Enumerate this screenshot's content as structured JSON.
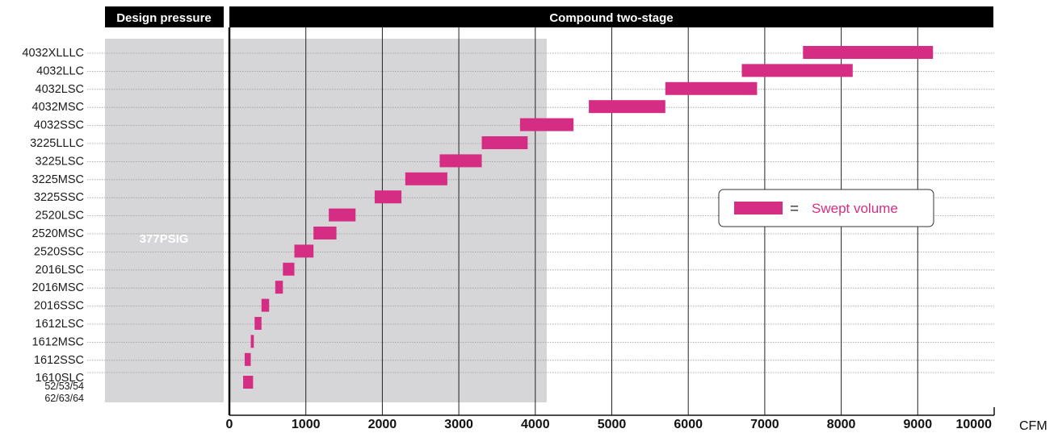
{
  "headers": {
    "design_pressure": "Design pressure",
    "compound": "Compound two-stage"
  },
  "region_label": "377PSIG",
  "legend": {
    "equals": "=",
    "label": "Swept volume"
  },
  "colors": {
    "bar": "#d62d84",
    "shade": "#d6d6d8",
    "header_bg": "#000000"
  },
  "chart_data": {
    "type": "bar",
    "orientation": "horizontal-range",
    "xunit": "CFM",
    "xlim": [
      0,
      10000
    ],
    "xticks": [
      "0",
      "1000",
      "2000",
      "3000",
      "4000",
      "5000",
      "6000",
      "7000",
      "8000",
      "9000",
      "10000"
    ],
    "shaded_range": [
      0,
      4150
    ],
    "series": [
      {
        "name": "Swept volume",
        "rows": [
          {
            "model": "4032XLLLC",
            "start": 7500,
            "end": 9200
          },
          {
            "model": "4032LLC",
            "start": 6700,
            "end": 8150
          },
          {
            "model": "4032LSC",
            "start": 5700,
            "end": 6900
          },
          {
            "model": "4032MSC",
            "start": 4700,
            "end": 5700
          },
          {
            "model": "4032SSC",
            "start": 3800,
            "end": 4500
          },
          {
            "model": "3225LLLC",
            "start": 3300,
            "end": 3900
          },
          {
            "model": "3225LSC",
            "start": 2750,
            "end": 3300
          },
          {
            "model": "3225MSC",
            "start": 2300,
            "end": 2850
          },
          {
            "model": "3225SSC",
            "start": 1900,
            "end": 2250
          },
          {
            "model": "2520LSC",
            "start": 1300,
            "end": 1650
          },
          {
            "model": "2520MSC",
            "start": 1100,
            "end": 1400
          },
          {
            "model": "2520SSC",
            "start": 850,
            "end": 1100
          },
          {
            "model": "2016LSC",
            "start": 700,
            "end": 850
          },
          {
            "model": "2016MSC",
            "start": 600,
            "end": 700
          },
          {
            "model": "2016SSC",
            "start": 420,
            "end": 520
          },
          {
            "model": "1612LSC",
            "start": 330,
            "end": 420
          },
          {
            "model": "1612MSC",
            "start": 280,
            "end": 320
          },
          {
            "model": "1612SSC",
            "start": 200,
            "end": 280
          },
          {
            "model": "1610SLC",
            "start": null,
            "end": null
          },
          {
            "model": "52/53/54",
            "start": 180,
            "end": 310
          },
          {
            "model": "62/63/64",
            "start": null,
            "end": null
          }
        ]
      }
    ]
  }
}
